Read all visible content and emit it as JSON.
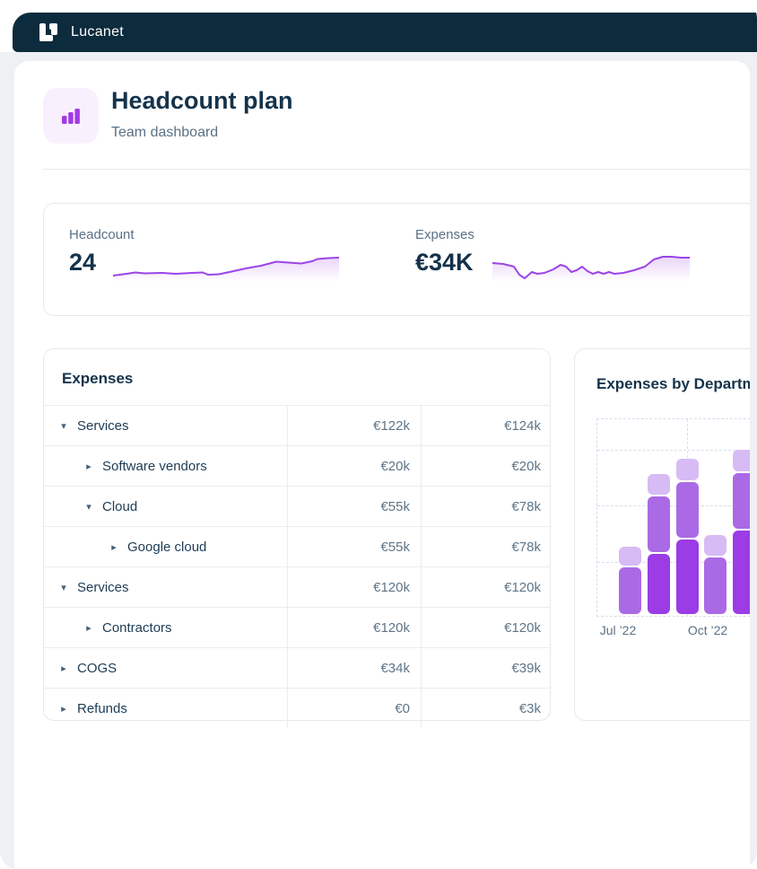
{
  "header": {
    "brand": "Lucanet"
  },
  "page": {
    "title": "Headcount plan",
    "subtitle": "Team dashboard"
  },
  "kpis": {
    "headcount": {
      "label": "Headcount",
      "value": "24",
      "spark": [
        [
          0,
          23
        ],
        [
          15,
          21
        ],
        [
          25,
          19.5
        ],
        [
          35,
          20.5
        ],
        [
          55,
          20
        ],
        [
          70,
          21
        ],
        [
          88,
          20
        ],
        [
          100,
          19.5
        ],
        [
          106,
          22
        ],
        [
          118,
          21.5
        ],
        [
          130,
          19
        ],
        [
          148,
          15
        ],
        [
          165,
          12
        ],
        [
          182,
          7.5
        ],
        [
          196,
          8.5
        ],
        [
          210,
          9.5
        ],
        [
          222,
          7
        ],
        [
          228,
          4.5
        ],
        [
          240,
          3.5
        ],
        [
          252,
          3
        ]
      ]
    },
    "expenses": {
      "label": "Expenses",
      "value": "€34K",
      "spark": [
        [
          0,
          9
        ],
        [
          12,
          10
        ],
        [
          24,
          13
        ],
        [
          30,
          22
        ],
        [
          36,
          26
        ],
        [
          44,
          19
        ],
        [
          50,
          21
        ],
        [
          58,
          20
        ],
        [
          68,
          16
        ],
        [
          76,
          11
        ],
        [
          82,
          13
        ],
        [
          88,
          19
        ],
        [
          94,
          17
        ],
        [
          100,
          13
        ],
        [
          106,
          18
        ],
        [
          112,
          21
        ],
        [
          118,
          19
        ],
        [
          124,
          21
        ],
        [
          130,
          19
        ],
        [
          136,
          21
        ],
        [
          146,
          20
        ],
        [
          158,
          17
        ],
        [
          170,
          13
        ],
        [
          180,
          5
        ],
        [
          190,
          2
        ],
        [
          200,
          2
        ],
        [
          210,
          3
        ],
        [
          220,
          3
        ]
      ]
    }
  },
  "expenses_table": {
    "title": "Expenses",
    "rows": [
      {
        "name": "Services",
        "level": 0,
        "expanded": true,
        "col1": "€122k",
        "col2": "€124k"
      },
      {
        "name": "Software vendors",
        "level": 1,
        "expanded": false,
        "col1": "€20k",
        "col2": "€20k"
      },
      {
        "name": "Cloud",
        "level": 1,
        "expanded": true,
        "col1": "€55k",
        "col2": "€78k"
      },
      {
        "name": "Google cloud",
        "level": 2,
        "expanded": false,
        "col1": "€55k",
        "col2": "€78k"
      },
      {
        "name": "Services",
        "level": 0,
        "expanded": true,
        "col1": "€120k",
        "col2": "€120k"
      },
      {
        "name": "Contractors",
        "level": 1,
        "expanded": false,
        "col1": "€120k",
        "col2": "€120k"
      },
      {
        "name": "COGS",
        "level": 0,
        "expanded": false,
        "col1": "€34k",
        "col2": "€39k"
      },
      {
        "name": "Refunds",
        "level": 0,
        "expanded": false,
        "col1": "€0",
        "col2": "€3k"
      }
    ]
  },
  "department_chart": {
    "title": "Expenses by Department",
    "chart_data": {
      "type": "bar",
      "stacked": true,
      "x_tick_labels": [
        "Jul ’22",
        "Oct ’22"
      ],
      "grid": "dashed",
      "bars": [
        {
          "x_label": "Jul ’22",
          "segments": [
            {
              "series": "mid",
              "value": 52
            },
            {
              "series": "light",
              "value": 21
            }
          ]
        },
        {
          "x_label": "",
          "segments": [
            {
              "series": "dark",
              "value": 67
            },
            {
              "series": "mid",
              "value": 62
            },
            {
              "series": "light",
              "value": 23
            }
          ]
        },
        {
          "x_label": "",
          "segments": [
            {
              "series": "dark",
              "value": 83
            },
            {
              "series": "mid",
              "value": 62
            },
            {
              "series": "light",
              "value": 24
            }
          ]
        },
        {
          "x_label": "Oct ’22",
          "segments": [
            {
              "series": "mid",
              "value": 63
            },
            {
              "series": "light",
              "value": 23
            }
          ]
        },
        {
          "x_label": "",
          "segments": [
            {
              "series": "dark",
              "value": 93
            },
            {
              "series": "mid",
              "value": 62
            },
            {
              "series": "light",
              "value": 24
            }
          ]
        }
      ],
      "series_colors": {
        "dark": "#9b3ce6",
        "mid": "#aa6ae6",
        "light": "#d7bbf4"
      },
      "value_unit": "relative-height"
    }
  },
  "colors": {
    "topbar": "#0c2b3d",
    "page_bg": "#eef0f4",
    "accent_purple": "#9c44e6",
    "title_text": "#15334b",
    "muted_text": "#5a7184"
  }
}
